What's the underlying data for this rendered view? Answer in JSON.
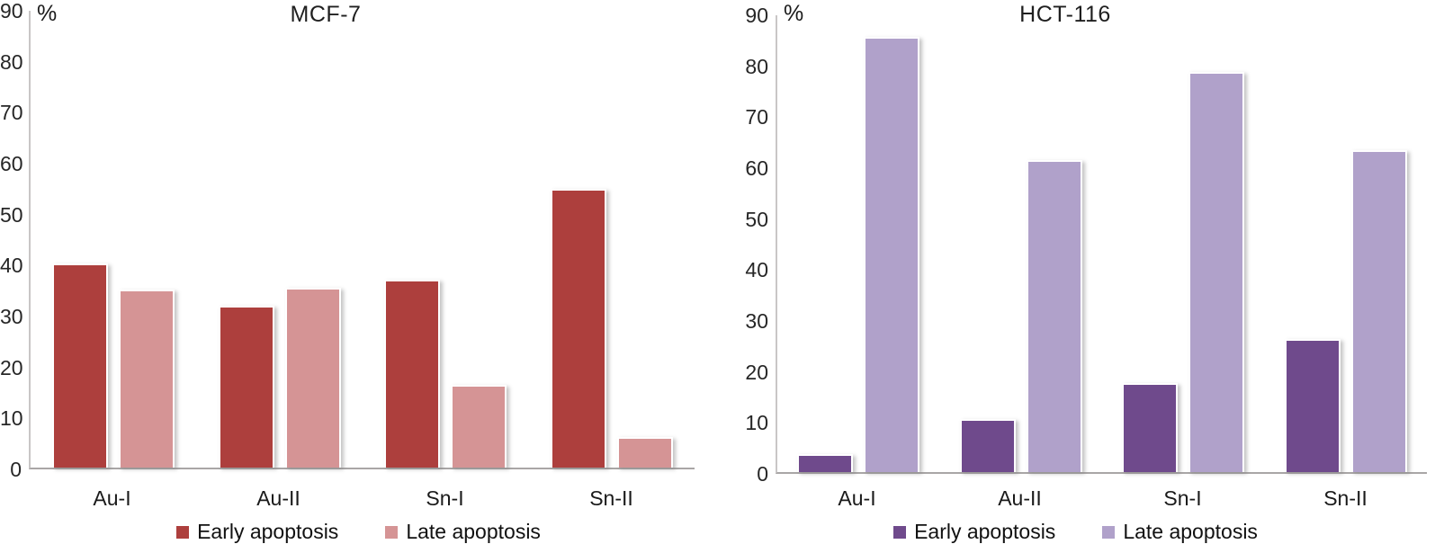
{
  "chart_data": [
    {
      "type": "bar",
      "title": "MCF-7",
      "unit_label": "%",
      "categories": [
        "Au-I",
        "Au-II",
        "Sn-I",
        "Sn-II"
      ],
      "series": [
        {
          "name": "Early apoptosis",
          "color": "#ad3f3d",
          "values": [
            39.7,
            31.5,
            36.6,
            54.3
          ]
        },
        {
          "name": "Late apoptosis",
          "color": "#d59495",
          "values": [
            34.6,
            35.0,
            15.9,
            5.6
          ]
        }
      ],
      "ylim": [
        0,
        90
      ],
      "ytick_step": 10,
      "ylabel": "%",
      "xlabel": "",
      "grid": false,
      "legend_position": "bottom"
    },
    {
      "type": "bar",
      "title": "HCT-116",
      "unit_label": "%",
      "categories": [
        "Au-I",
        "Au-II",
        "Sn-I",
        "Sn-II"
      ],
      "series": [
        {
          "name": "Early apoptosis",
          "color": "#6f4a8c",
          "values": [
            3.2,
            10.0,
            17.2,
            25.7
          ]
        },
        {
          "name": "Late apoptosis",
          "color": "#b0a1ca",
          "values": [
            85.0,
            60.8,
            78.2,
            62.8
          ]
        }
      ],
      "ylim": [
        0,
        90
      ],
      "ytick_step": 10,
      "ylabel": "%",
      "xlabel": "",
      "grid": false,
      "legend_position": "bottom"
    }
  ]
}
